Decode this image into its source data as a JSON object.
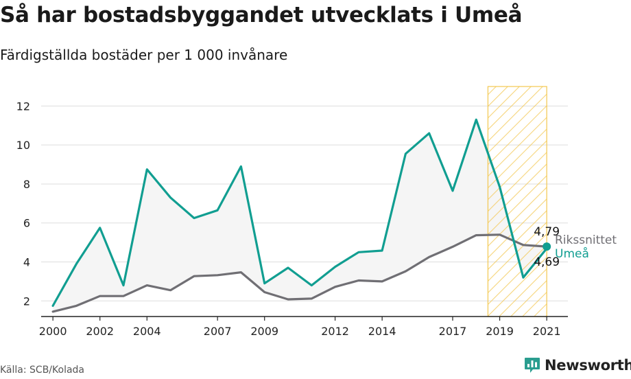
{
  "title": "Så har bostadsbyggandet utvecklats i Umeå",
  "subtitle": "Färdigställda bostäder per 1 000 invånare",
  "source": "Källa: SCB/Kolada",
  "brand": "Newsworthy",
  "colors": {
    "umea": "#119e91",
    "riket": "#706f74",
    "fill": "#f5f5f5",
    "highlight": "#f3c74f",
    "grid": "#dddddd",
    "brand_icon": "#2a9d8f"
  },
  "chart_data": {
    "type": "line",
    "x": [
      2000,
      2001,
      2002,
      2003,
      2004,
      2005,
      2006,
      2007,
      2008,
      2009,
      2010,
      2011,
      2012,
      2013,
      2014,
      2015,
      2016,
      2017,
      2018,
      2019,
      2020,
      2021
    ],
    "xticks": [
      "2000",
      "2002",
      "2004",
      "2007",
      "2009",
      "2012",
      "2014",
      "2017",
      "2019",
      "2021"
    ],
    "yticks": [
      "2",
      "4",
      "6",
      "8",
      "10",
      "12"
    ],
    "ylim": [
      1.2,
      13.0
    ],
    "xlim": [
      1999.5,
      2021.9
    ],
    "grid": true,
    "highlight_period": [
      2018.5,
      2021
    ],
    "series": [
      {
        "name": "Umeå",
        "values": [
          1.75,
          3.9,
          5.75,
          2.8,
          8.75,
          7.3,
          6.25,
          6.65,
          8.9,
          2.9,
          3.7,
          2.8,
          3.75,
          4.5,
          4.58,
          9.55,
          10.6,
          7.65,
          11.3,
          7.85,
          3.2,
          4.69
        ],
        "end_label": "4,69"
      },
      {
        "name": "Rikssnittet",
        "values": [
          1.45,
          1.75,
          2.25,
          2.25,
          2.8,
          2.55,
          3.27,
          3.32,
          3.47,
          2.45,
          2.08,
          2.12,
          2.72,
          3.05,
          3.0,
          3.52,
          4.25,
          4.78,
          5.37,
          5.4,
          4.87,
          4.79
        ],
        "end_label": "4,79"
      }
    ]
  }
}
